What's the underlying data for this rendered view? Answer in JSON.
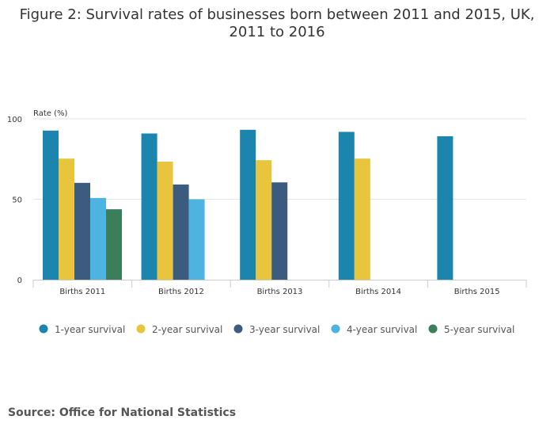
{
  "title_line1": "Figure 2: Survival rates of businesses born between 2011 and 2015, UK,",
  "title_line2": "2011 to 2016",
  "source": "Source: Office for National Statistics",
  "chart_data": {
    "type": "bar",
    "title": "Figure 2: Survival rates of businesses born between 2011 and 2015, UK, 2011 to 2016",
    "ylabel": "Rate (%)",
    "xlabel": "",
    "ylim": [
      0,
      100
    ],
    "yticks": [
      0,
      50,
      100
    ],
    "grid": true,
    "legend_position": "bottom",
    "categories": [
      "Births 2011",
      "Births 2012",
      "Births 2013",
      "Births 2014",
      "Births 2015"
    ],
    "series": [
      {
        "name": "1-year survival",
        "color": "#1c85ad",
        "values": [
          92.7,
          90.9,
          93.2,
          91.9,
          89.2
        ]
      },
      {
        "name": "2-year survival",
        "color": "#e8c53c",
        "values": [
          75.3,
          73.4,
          74.3,
          75.3,
          null
        ]
      },
      {
        "name": "3-year survival",
        "color": "#3b5c7e",
        "values": [
          60.2,
          59.2,
          60.5,
          null,
          null
        ]
      },
      {
        "name": "4-year survival",
        "color": "#4db3e1",
        "values": [
          50.8,
          50.0,
          null,
          null,
          null
        ]
      },
      {
        "name": "5-year survival",
        "color": "#3b7e5a",
        "values": [
          43.8,
          null,
          null,
          null,
          null
        ]
      }
    ]
  }
}
